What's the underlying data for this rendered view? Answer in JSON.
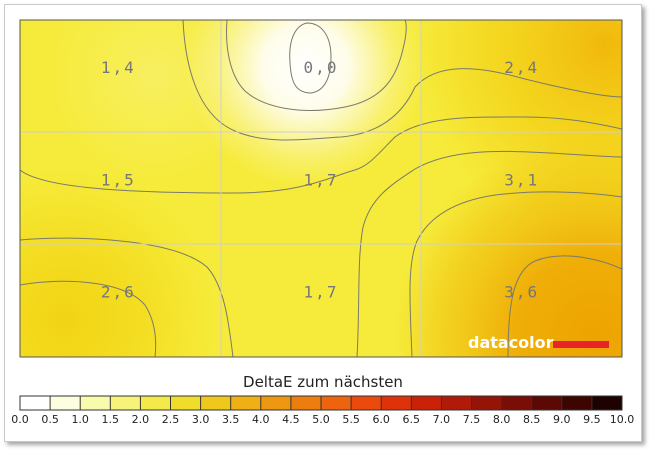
{
  "chart_data": {
    "type": "heatmap",
    "rows": 3,
    "cols": 3,
    "values": [
      [
        "1,4",
        "0,0",
        "2,4"
      ],
      [
        "1,5",
        "1,7",
        "3,1"
      ],
      [
        "2,6",
        "1,7",
        "3,6"
      ]
    ],
    "grid": true,
    "contours": true,
    "legend": {
      "title": "DeltaE zum nächsten",
      "ticks": [
        "0.0",
        "0.5",
        "1.0",
        "1.5",
        "2.0",
        "2.5",
        "3.0",
        "3.5",
        "4.0",
        "4.5",
        "5.0",
        "5.5",
        "6.0",
        "6.5",
        "7.0",
        "7.5",
        "8.0",
        "8.5",
        "9.0",
        "9.5",
        "10.0"
      ],
      "colors": [
        "#ffffff",
        "#fdfde0",
        "#fafaae",
        "#f7f37a",
        "#f3e94a",
        "#f0dc2a",
        "#efc81c",
        "#eeb015",
        "#ee9712",
        "#ee7d10",
        "#ee640e",
        "#ea4a0c",
        "#df320a",
        "#c92209",
        "#b01a08",
        "#951307",
        "#7a0d05",
        "#5c0804",
        "#3e0402",
        "#1e0201"
      ]
    }
  },
  "brand": {
    "text": "datacolor",
    "accent_color": "#e8232a"
  }
}
